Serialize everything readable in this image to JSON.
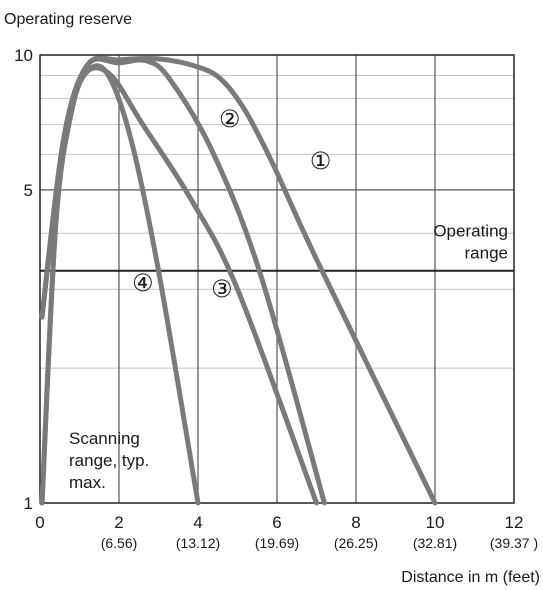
{
  "chart_data": {
    "type": "line",
    "title": "",
    "ylabel": "Operating reserve",
    "xlabel": "Distance in m (feet)",
    "yscale": "log",
    "xlim": [
      0,
      12
    ],
    "ylim": [
      1,
      10
    ],
    "grid": true,
    "x_ticks": [
      {
        "value": 0,
        "label": "0",
        "sub": ""
      },
      {
        "value": 2,
        "label": "2",
        "sub": "(6.56)"
      },
      {
        "value": 4,
        "label": "4",
        "sub": "(13.12)"
      },
      {
        "value": 6,
        "label": "6",
        "sub": "(19.69)"
      },
      {
        "value": 8,
        "label": "8",
        "sub": "(26.25)"
      },
      {
        "value": 10,
        "label": "10",
        "sub": "(32.81)"
      },
      {
        "value": 12,
        "label": "12",
        "sub": "(39.37 )"
      }
    ],
    "y_ticks": [
      {
        "value": 1,
        "label": "1"
      },
      {
        "value": 5,
        "label": "5"
      },
      {
        "value": 10,
        "label": "10"
      }
    ],
    "y_grid": [
      1,
      2,
      3,
      4,
      5,
      6,
      7,
      8,
      9,
      10
    ],
    "operating_range_level": 3.3,
    "operating_range_label": [
      "Operating",
      "range"
    ],
    "scanning_range_label": [
      "Scanning",
      "range, typ.",
      "max."
    ],
    "line_color": "#7a7a7a",
    "series": [
      {
        "name": "①",
        "label_at": [
          7.1,
          5.8
        ],
        "points": [
          [
            0.05,
            2.6
          ],
          [
            0.6,
            6.5
          ],
          [
            1.2,
            9.5
          ],
          [
            2.0,
            9.75
          ],
          [
            3.0,
            9.8
          ],
          [
            4.0,
            9.4
          ],
          [
            4.6,
            8.8
          ],
          [
            5.2,
            7.5
          ],
          [
            5.9,
            5.7
          ],
          [
            7.0,
            3.5
          ],
          [
            10.0,
            1.0
          ]
        ]
      },
      {
        "name": "②",
        "label_at": [
          4.8,
          7.2
        ],
        "points": [
          [
            0.05,
            2.6
          ],
          [
            0.6,
            6.5
          ],
          [
            1.2,
            9.5
          ],
          [
            2.0,
            9.6
          ],
          [
            2.7,
            9.7
          ],
          [
            3.3,
            8.8
          ],
          [
            4.4,
            6.0
          ],
          [
            5.6,
            3.2
          ],
          [
            7.2,
            1.0
          ]
        ]
      },
      {
        "name": "③",
        "label_at": [
          4.6,
          3.0
        ],
        "points": [
          [
            0.05,
            1.0
          ],
          [
            0.4,
            4.2
          ],
          [
            0.8,
            7.5
          ],
          [
            1.2,
            9.2
          ],
          [
            1.8,
            9.0
          ],
          [
            2.6,
            7.0
          ],
          [
            3.8,
            4.8
          ],
          [
            5.0,
            3.0
          ],
          [
            7.0,
            1.0
          ]
        ]
      },
      {
        "name": "④",
        "label_at": [
          2.6,
          3.1
        ],
        "points": [
          [
            0.05,
            1.0
          ],
          [
            0.4,
            4.2
          ],
          [
            0.8,
            7.5
          ],
          [
            1.2,
            9.2
          ],
          [
            1.7,
            9.1
          ],
          [
            2.3,
            6.5
          ],
          [
            3.0,
            3.3
          ],
          [
            4.0,
            1.0
          ]
        ]
      }
    ]
  }
}
